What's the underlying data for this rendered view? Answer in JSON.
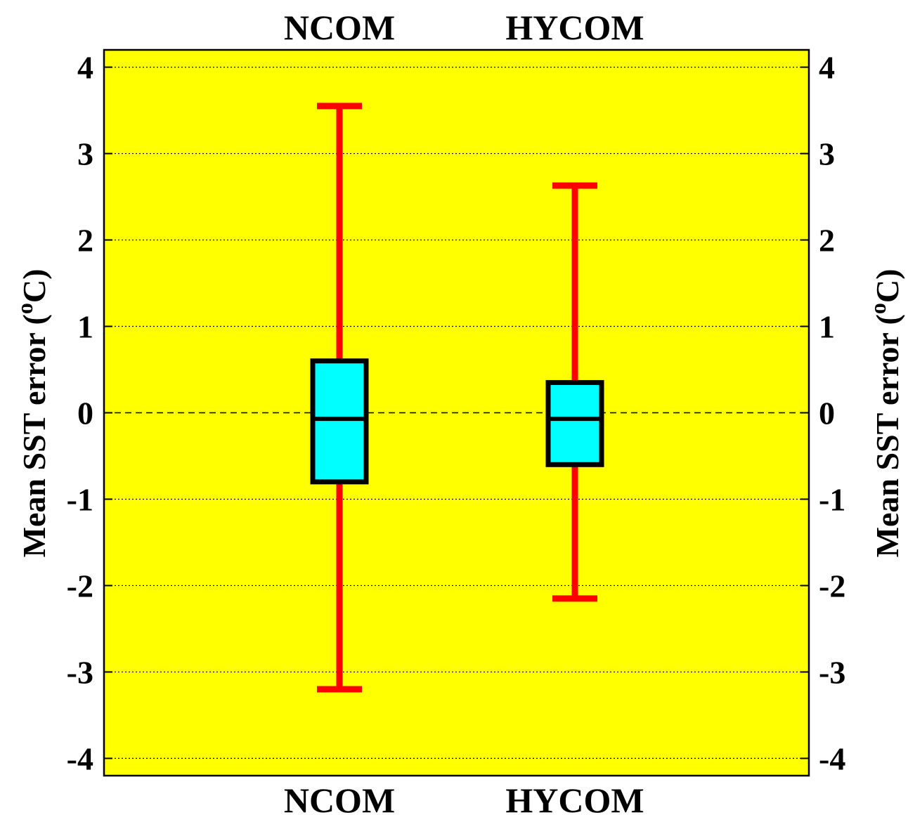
{
  "chart_data": {
    "type": "box",
    "categories": [
      "NCOM",
      "HYCOM"
    ],
    "boxes": [
      {
        "category": "NCOM",
        "whisker_low": -3.2,
        "q1": -0.8,
        "median": -0.07,
        "q3": 0.6,
        "whisker_high": 3.55
      },
      {
        "category": "HYCOM",
        "whisker_low": -2.15,
        "q1": -0.6,
        "median": -0.07,
        "q3": 0.35,
        "whisker_high": 2.63
      }
    ],
    "ylabel_prefix": "Mean SST error (",
    "ylabel_superscript": "o",
    "ylabel_suffix": "C)",
    "ylim": [
      -4.2,
      4.2
    ],
    "yticks": [
      -4,
      -3,
      -2,
      -1,
      0,
      1,
      2,
      3,
      4
    ],
    "ytick_labels": [
      "-4",
      "-3",
      "-2",
      "-1",
      "0",
      "1",
      "2",
      "3",
      "4"
    ],
    "grid": "dotted horizontal",
    "zero_line": "dashed",
    "colors": {
      "background": "#ffff00",
      "box_fill": "#00ffff",
      "box_edge": "#000000",
      "whisker": "#ff0000",
      "grid": "#000000"
    }
  }
}
